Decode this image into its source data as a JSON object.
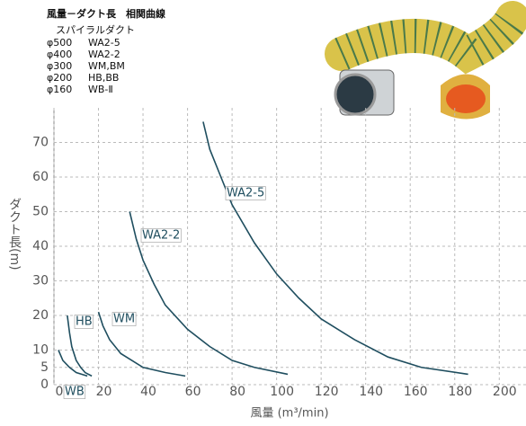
{
  "chart_data": {
    "type": "line",
    "title": "風量－ダクト長　相関曲線",
    "subtitle": "スパイラルダクト",
    "specs": [
      {
        "size": "φ500",
        "model": "WA2-5"
      },
      {
        "size": "φ400",
        "model": "WA2-2"
      },
      {
        "size": "φ300",
        "model": "WM,BM"
      },
      {
        "size": "φ200",
        "model": "HB,BB"
      },
      {
        "size": "φ160",
        "model": "WB-Ⅱ"
      }
    ],
    "x_label": "風量 (m³/min)",
    "y_label": "ダクト長(m)",
    "xlim": [
      0,
      212
    ],
    "ylim": [
      0,
      80
    ],
    "xticks": [
      0,
      20,
      40,
      60,
      80,
      100,
      120,
      140,
      160,
      180,
      200
    ],
    "yticks": [
      0,
      5,
      10,
      20,
      30,
      40,
      50,
      60,
      70
    ],
    "grid": true,
    "color": "#1f4e5f",
    "series": [
      {
        "name": "WA2-5",
        "x": [
          67,
          70,
          75,
          80,
          90,
          100,
          110,
          120,
          135,
          150,
          165,
          186
        ],
        "values": [
          76,
          68,
          60,
          52,
          41,
          32,
          25,
          19,
          13,
          8,
          5,
          3
        ]
      },
      {
        "name": "WA2-2",
        "x": [
          34,
          37,
          40,
          45,
          50,
          60,
          70,
          80,
          90,
          105
        ],
        "values": [
          50,
          42,
          36,
          29,
          23,
          16,
          11,
          7,
          5,
          3
        ]
      },
      {
        "name": "WM",
        "x": [
          20,
          22,
          25,
          30,
          35,
          40,
          50,
          59
        ],
        "values": [
          21,
          17,
          13,
          9,
          7,
          5,
          3.5,
          2.5
        ]
      },
      {
        "name": "HB",
        "x": [
          6,
          7,
          8,
          10,
          12,
          14,
          17
        ],
        "values": [
          20,
          15,
          11,
          7,
          5,
          3.5,
          2.5
        ]
      },
      {
        "name": "WB",
        "x": [
          2,
          4,
          7,
          10,
          15
        ],
        "values": [
          10,
          7,
          5,
          3.5,
          2.5
        ]
      }
    ]
  }
}
